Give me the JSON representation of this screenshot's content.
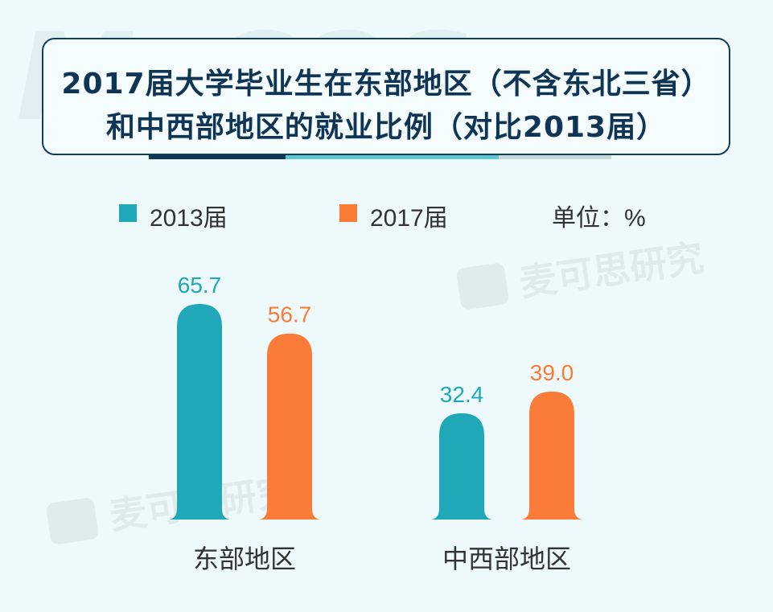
{
  "title": {
    "line1": "2017届大学毕业生在东部地区（不含东北三省）",
    "line2": "和中西部地区的就业比例（对比2013届）"
  },
  "legend": {
    "item1": "2013届",
    "item2": "2017届",
    "unit": "单位：%"
  },
  "watermark": {
    "brand": "MyCOS",
    "text1": "麦可思研究",
    "text2": "麦可思研究"
  },
  "colors": {
    "series2013": "#1ea8b8",
    "series2017": "#fb7b38",
    "title": "#0f3556"
  },
  "chart_data": {
    "type": "bar",
    "title": "2017届大学毕业生在东部地区（不含东北三省）和中西部地区的就业比例（对比2013届）",
    "categories": [
      "东部地区",
      "中西部地区"
    ],
    "series": [
      {
        "name": "2013届",
        "values": [
          65.7,
          32.4
        ],
        "labels": [
          "65.7",
          "32.4"
        ]
      },
      {
        "name": "2017届",
        "values": [
          56.7,
          39.0
        ],
        "labels": [
          "56.7",
          "39.0"
        ]
      }
    ],
    "unit": "%",
    "ylim": [
      0,
      70
    ],
    "grid": false,
    "legend_position": "top"
  }
}
